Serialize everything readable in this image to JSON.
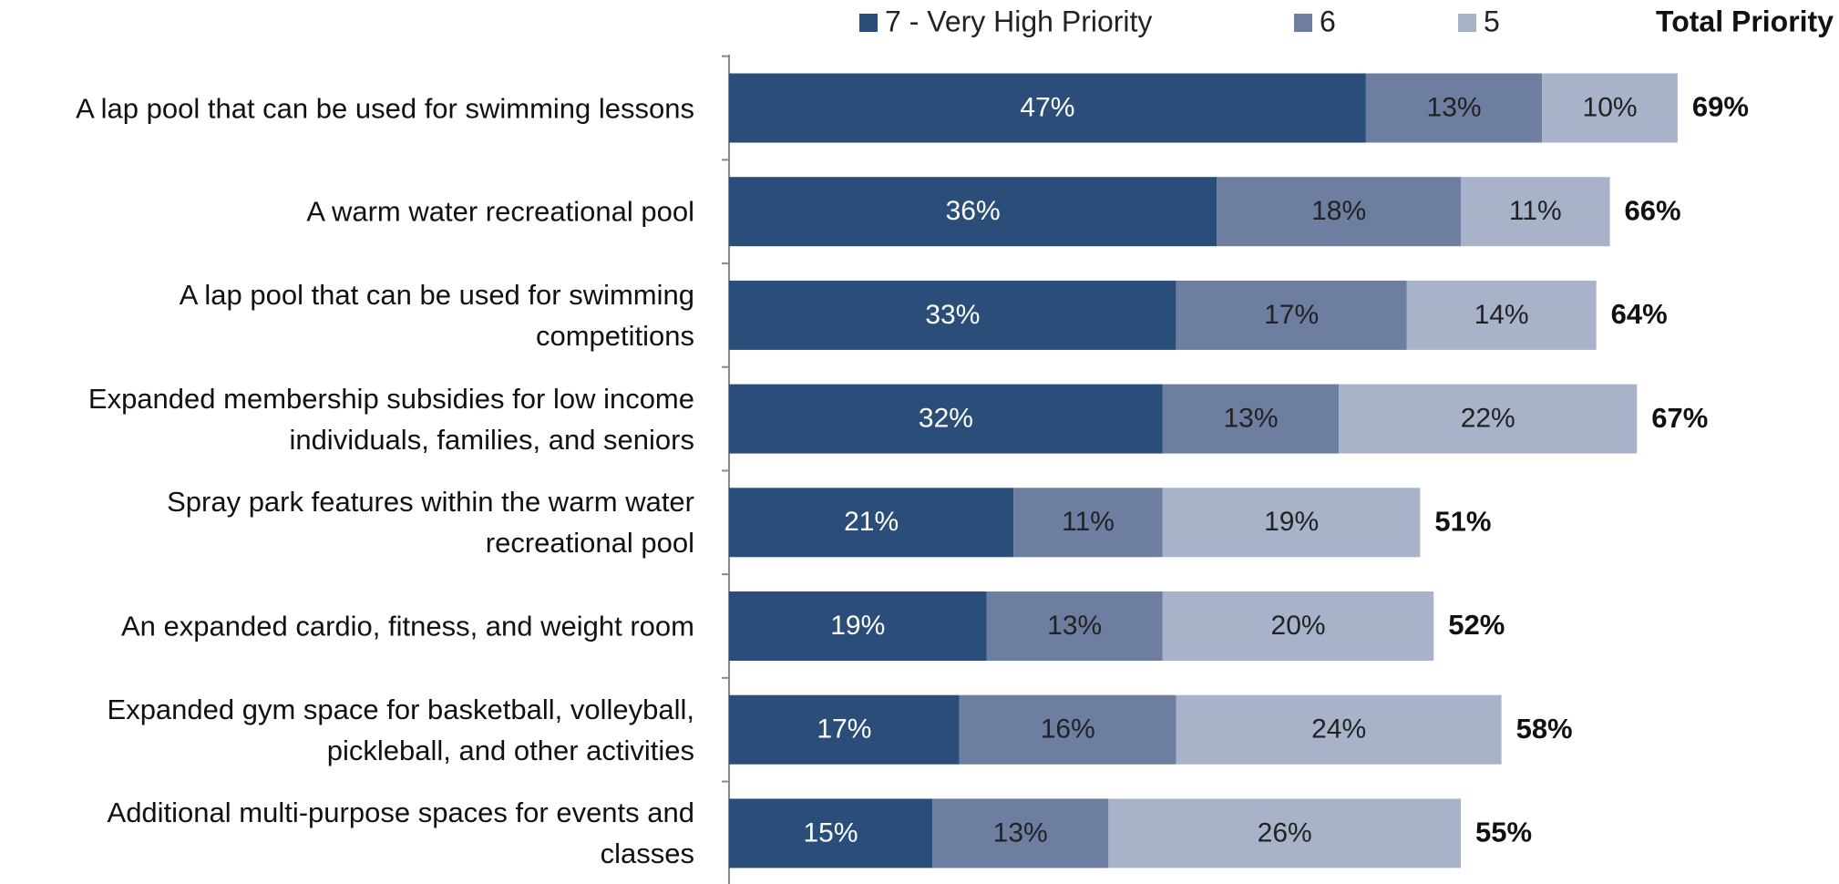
{
  "chart_data": {
    "type": "stacked-bar-horizontal",
    "categories": [
      "A lap pool that can be used for swimming lessons",
      "A warm water recreational pool",
      "A lap pool that can be used for swimming\ncompetitions",
      "Expanded membership subsidies for low income\nindividuals, families, and seniors",
      "Spray park features within the warm water\nrecreational pool",
      "An expanded cardio, fitness, and weight room",
      "Expanded gym space for basketball, volleyball,\npickleball, and other activities",
      "Additional multi-purpose spaces for events and\nclasses"
    ],
    "series": [
      {
        "name": "7 - Very High Priority",
        "color": "#2a4e79",
        "values": [
          47,
          36,
          33,
          32,
          21,
          19,
          17,
          15
        ],
        "value_labels": [
          "47%",
          "36%",
          "33%",
          "32%",
          "21%",
          "19%",
          "17%",
          "15%"
        ]
      },
      {
        "name": "6",
        "color": "#6d7ea0",
        "values": [
          13,
          18,
          17,
          13,
          11,
          13,
          16,
          13
        ],
        "value_labels": [
          "13%",
          "18%",
          "17%",
          "13%",
          "11%",
          "13%",
          "16%",
          "13%"
        ]
      },
      {
        "name": "5",
        "color": "#a8b2c9",
        "values": [
          10,
          11,
          14,
          22,
          19,
          20,
          24,
          26
        ],
        "value_labels": [
          "10%",
          "11%",
          "14%",
          "22%",
          "19%",
          "20%",
          "24%",
          "26%"
        ]
      }
    ],
    "total": {
      "name": "Total Priority",
      "values": [
        69,
        66,
        64,
        67,
        51,
        52,
        58,
        55
      ],
      "value_labels": [
        "69%",
        "66%",
        "64%",
        "67%",
        "51%",
        "52%",
        "58%",
        "55%"
      ]
    },
    "legend": "top"
  }
}
